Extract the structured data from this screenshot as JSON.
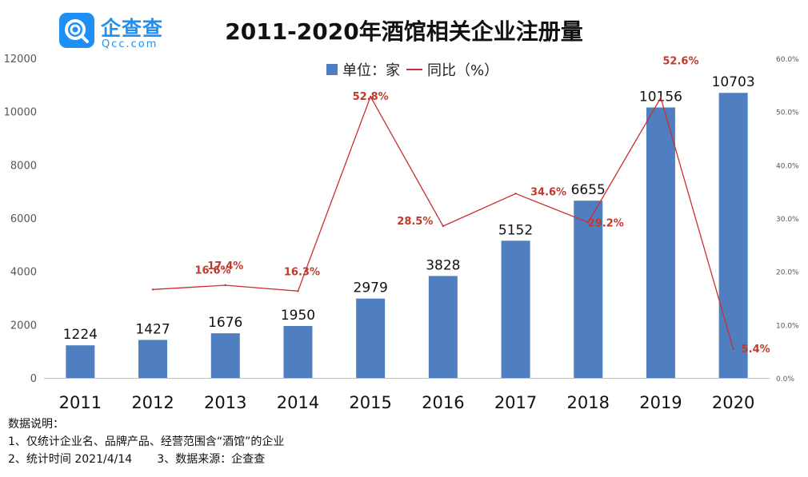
{
  "logo": {
    "name": "企查查",
    "domain": "Qcc.com",
    "color": "#1e90f5"
  },
  "chart_data": {
    "type": "bar",
    "title": "2011-2020年酒馆相关企业注册量",
    "categories": [
      "2011",
      "2012",
      "2013",
      "2014",
      "2015",
      "2016",
      "2017",
      "2018",
      "2019",
      "2020"
    ],
    "series": [
      {
        "name": "单位：家",
        "type": "bar",
        "color": "#4f7fc0",
        "values": [
          1224,
          1427,
          1676,
          1950,
          2979,
          3828,
          5152,
          6655,
          10156,
          10703
        ]
      },
      {
        "name": "同比（%）",
        "type": "line",
        "color": "#cc2e2e",
        "axis": "right",
        "values": [
          null,
          16.6,
          17.4,
          16.3,
          52.8,
          28.5,
          34.6,
          29.2,
          52.6,
          5.4
        ],
        "labels": [
          "",
          "16.6%",
          "17.4%",
          "16.3%",
          "52.8%",
          "28.5%",
          "34.6%",
          "29.2%",
          "52.6%",
          "5.4%"
        ]
      }
    ],
    "ylim": [
      0,
      12000
    ],
    "yticks": [
      "0",
      "2000",
      "4000",
      "6000",
      "8000",
      "10000",
      "12000"
    ],
    "y2lim": [
      0,
      60
    ],
    "y2ticks": [
      "0.0%",
      "10.0%",
      "20.0%",
      "30.0%",
      "40.0%",
      "50.0%",
      "60.0%"
    ],
    "legend_position": "top-center",
    "grid": false
  },
  "notes": {
    "heading": "数据说明：",
    "line1": "1、仅统计企业名、品牌产品、经营范围含“酒馆”的企业",
    "line2": "2、统计时间 2021/4/14       3、数据来源：企查查"
  }
}
